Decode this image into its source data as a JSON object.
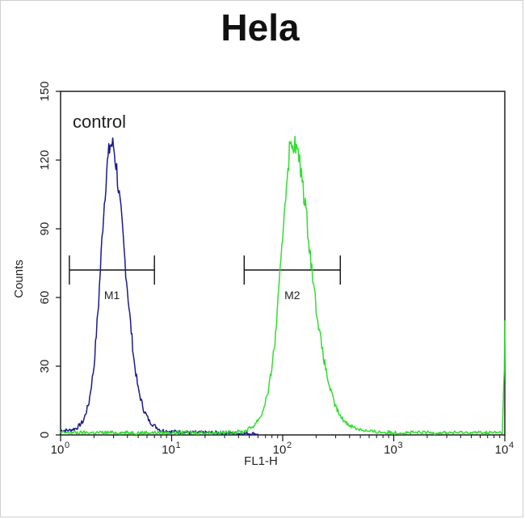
{
  "chart_data": {
    "type": "histogram",
    "title": "Hela",
    "xlabel": "FL1-H",
    "ylabel": "Counts",
    "xscale": "log",
    "xlim": [
      1,
      10000
    ],
    "ylim": [
      0,
      150
    ],
    "x_ticks": [
      {
        "value": 1,
        "base": "10",
        "exp": "0"
      },
      {
        "value": 10,
        "base": "10",
        "exp": "1"
      },
      {
        "value": 100,
        "base": "10",
        "exp": "2"
      },
      {
        "value": 1000,
        "base": "10",
        "exp": "3"
      },
      {
        "value": 10000,
        "base": "10",
        "exp": "4"
      }
    ],
    "y_ticks": [
      0,
      30,
      60,
      90,
      120,
      150
    ],
    "annotations": [
      {
        "text": "control",
        "series": "control"
      }
    ],
    "markers": [
      {
        "label": "M1",
        "range": [
          1.2,
          7
        ],
        "y": 72
      },
      {
        "label": "M2",
        "range": [
          45,
          330
        ],
        "y": 72
      }
    ],
    "series": [
      {
        "key": "control",
        "color": "#1a1a8c",
        "peak_x": 2.9,
        "peak_y": 128,
        "points": [
          [
            1.0,
            2
          ],
          [
            1.2,
            2
          ],
          [
            1.4,
            3
          ],
          [
            1.6,
            6
          ],
          [
            1.8,
            14
          ],
          [
            2.0,
            30
          ],
          [
            2.2,
            58
          ],
          [
            2.4,
            92
          ],
          [
            2.6,
            116
          ],
          [
            2.8,
            127
          ],
          [
            3.0,
            126
          ],
          [
            3.2,
            116
          ],
          [
            3.5,
            96
          ],
          [
            3.8,
            76
          ],
          [
            4.2,
            52
          ],
          [
            4.6,
            32
          ],
          [
            5.0,
            20
          ],
          [
            5.6,
            11
          ],
          [
            6.3,
            6
          ],
          [
            7.0,
            4
          ],
          [
            8.0,
            2
          ],
          [
            10,
            1.5
          ],
          [
            15,
            1
          ],
          [
            25,
            1
          ],
          [
            60,
            0.5
          ]
        ]
      },
      {
        "key": "sample",
        "color": "#33dd33",
        "peak_x": 120,
        "peak_y": 129,
        "points": [
          [
            1.0,
            1
          ],
          [
            10,
            1
          ],
          [
            30,
            1
          ],
          [
            45,
            1.5
          ],
          [
            55,
            4
          ],
          [
            65,
            9
          ],
          [
            75,
            20
          ],
          [
            85,
            40
          ],
          [
            95,
            70
          ],
          [
            105,
            103
          ],
          [
            115,
            124
          ],
          [
            125,
            128
          ],
          [
            135,
            124
          ],
          [
            150,
            112
          ],
          [
            165,
            94
          ],
          [
            180,
            76
          ],
          [
            200,
            56
          ],
          [
            225,
            38
          ],
          [
            255,
            24
          ],
          [
            290,
            14
          ],
          [
            330,
            8
          ],
          [
            380,
            5
          ],
          [
            450,
            3
          ],
          [
            600,
            1.5
          ],
          [
            1000,
            1
          ],
          [
            3000,
            1
          ],
          [
            9500,
            1
          ],
          [
            9900,
            30
          ],
          [
            10000,
            50
          ]
        ]
      }
    ]
  }
}
